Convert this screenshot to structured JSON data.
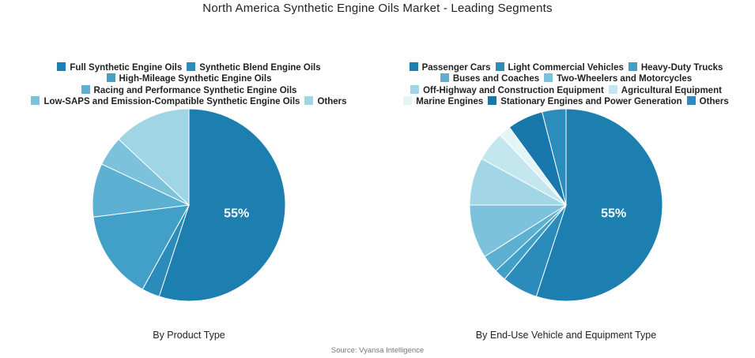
{
  "title": "North America Synthetic Engine Oils Market - Leading Segments",
  "source": "Source: Vyansa Intelligence",
  "chart_data": [
    {
      "type": "pie",
      "caption": "By Product Type",
      "legend_position": "top",
      "slices": [
        {
          "label": "Full Synthetic Engine Oils",
          "value": 55,
          "color": "#1c7fb0",
          "show_label": "55%"
        },
        {
          "label": "Synthetic Blend Engine Oils",
          "value": 3,
          "color": "#2b8cbc",
          "show_label": ""
        },
        {
          "label": "High-Mileage Synthetic Engine Oils",
          "value": 15,
          "color": "#419fc8",
          "show_label": ""
        },
        {
          "label": "Racing and Performance Synthetic Engine Oils",
          "value": 9,
          "color": "#5cb0d2",
          "show_label": ""
        },
        {
          "label": "Low-SAPS and Emission-Compatible Synthetic Engine Oils",
          "value": 5,
          "color": "#7dc2dc",
          "show_label": ""
        },
        {
          "label": "Others",
          "value": 13,
          "color": "#9fd5e5",
          "show_label": ""
        }
      ]
    },
    {
      "type": "pie",
      "caption": "By End-Use Vehicle and Equipment Type",
      "legend_position": "top",
      "slices": [
        {
          "label": "Passenger Cars",
          "value": 55,
          "color": "#1c7fb0",
          "show_label": "55%"
        },
        {
          "label": "Light Commercial Vehicles",
          "value": 6,
          "color": "#2b8cbc",
          "show_label": ""
        },
        {
          "label": "Heavy-Duty Trucks",
          "value": 2,
          "color": "#419fc8",
          "show_label": ""
        },
        {
          "label": "Buses and Coaches",
          "value": 3,
          "color": "#5cb0d2",
          "show_label": ""
        },
        {
          "label": "Two-Wheelers and Motorcycles",
          "value": 9,
          "color": "#7dc2dc",
          "show_label": ""
        },
        {
          "label": "Off-Highway and Construction Equipment",
          "value": 8,
          "color": "#a2d6e6",
          "show_label": ""
        },
        {
          "label": "Agricultural Equipment",
          "value": 5,
          "color": "#c4e6ef",
          "show_label": ""
        },
        {
          "label": "Marine Engines",
          "value": 2,
          "color": "#e4f5f8",
          "show_label": ""
        },
        {
          "label": "Stationary Engines and Power Generation",
          "value": 6,
          "color": "#1878ab",
          "show_label": ""
        },
        {
          "label": "Others",
          "value": 4,
          "color": "#2c8dbd",
          "show_label": ""
        }
      ]
    }
  ]
}
